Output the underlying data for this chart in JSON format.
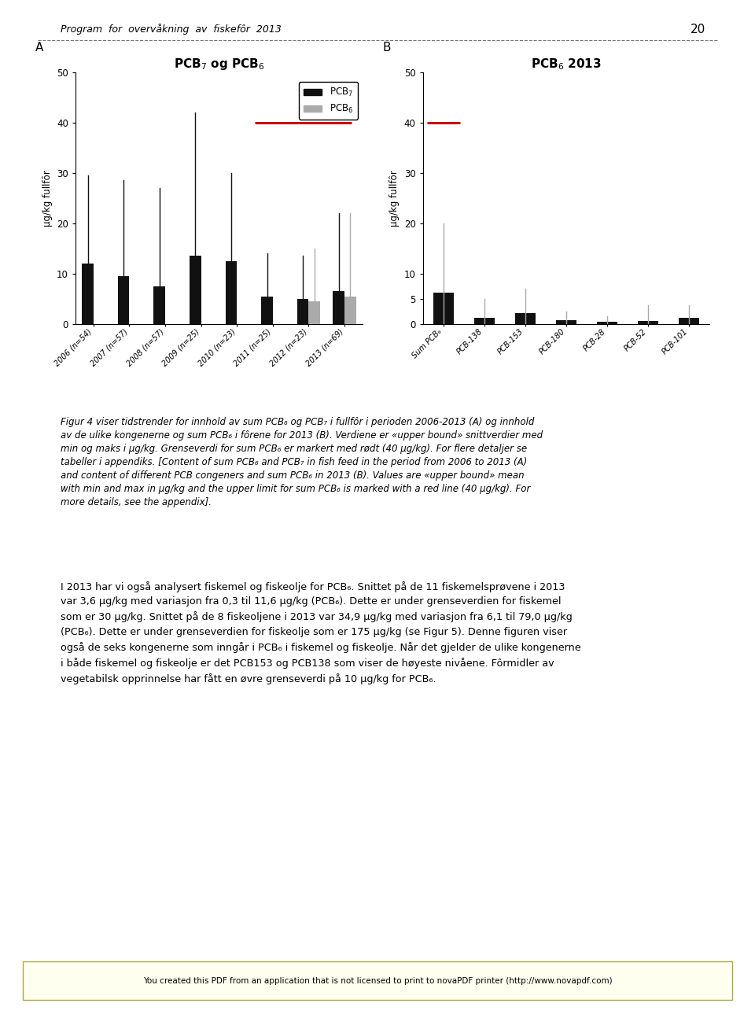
{
  "panel_A": {
    "years": [
      "2006 (n=54)",
      "2007 (n=57)",
      "2008 (n=57)",
      "2009 (n=25)",
      "2010 (n=23)",
      "2011 (n=25)",
      "2012 (n=23)",
      "2013 (n=69)"
    ],
    "pcb7_mean": [
      12.0,
      9.5,
      7.5,
      13.5,
      12.5,
      5.5,
      5.0,
      6.5
    ],
    "pcb7_max": [
      29.5,
      28.5,
      27.0,
      42.0,
      30.0,
      14.0,
      13.5,
      22.0
    ],
    "pcb6_mean": [
      null,
      null,
      null,
      null,
      null,
      null,
      4.5,
      5.5
    ],
    "pcb6_max": [
      null,
      null,
      null,
      null,
      null,
      null,
      15.0,
      22.0
    ],
    "pcb7_color": "#111111",
    "pcb6_color": "#aaaaaa",
    "ylim": [
      0,
      50
    ],
    "yticks": [
      0,
      10,
      20,
      30,
      40,
      50
    ],
    "ylabel": "μg/kg fullfôr",
    "red_line_y": 40,
    "red_line_color": "#cc0000"
  },
  "panel_B": {
    "categories": [
      "Sum PCB₆",
      "PCB-138",
      "PCB-153",
      "PCB-180",
      "PCB-28",
      "PCB-52",
      "PCB-101"
    ],
    "mean": [
      6.3,
      1.3,
      2.2,
      0.8,
      0.5,
      0.6,
      1.3
    ],
    "max": [
      20.0,
      5.0,
      7.0,
      2.5,
      1.5,
      3.8,
      3.8
    ],
    "bar_color": "#111111",
    "whisker_color": "#aaaaaa",
    "ylim": [
      0,
      50
    ],
    "yticks": [
      0,
      5,
      10,
      20,
      30,
      40,
      50
    ],
    "ylabel": "μg/kg fullfôr",
    "red_line_y": 40,
    "red_line_color": "#cc0000"
  },
  "page_header": "Program  for  overvåkning  av  fiskefôr  2013",
  "page_number": "20",
  "background_color": "#ffffff",
  "bar_width": 0.32,
  "caption_italic": "Figur 4 viser tidstrender for innhold av sum PCB",
  "footer_text": "You created this PDF from an application that is not licensed to print to novaPDF printer (http://www.novapdf.com)"
}
